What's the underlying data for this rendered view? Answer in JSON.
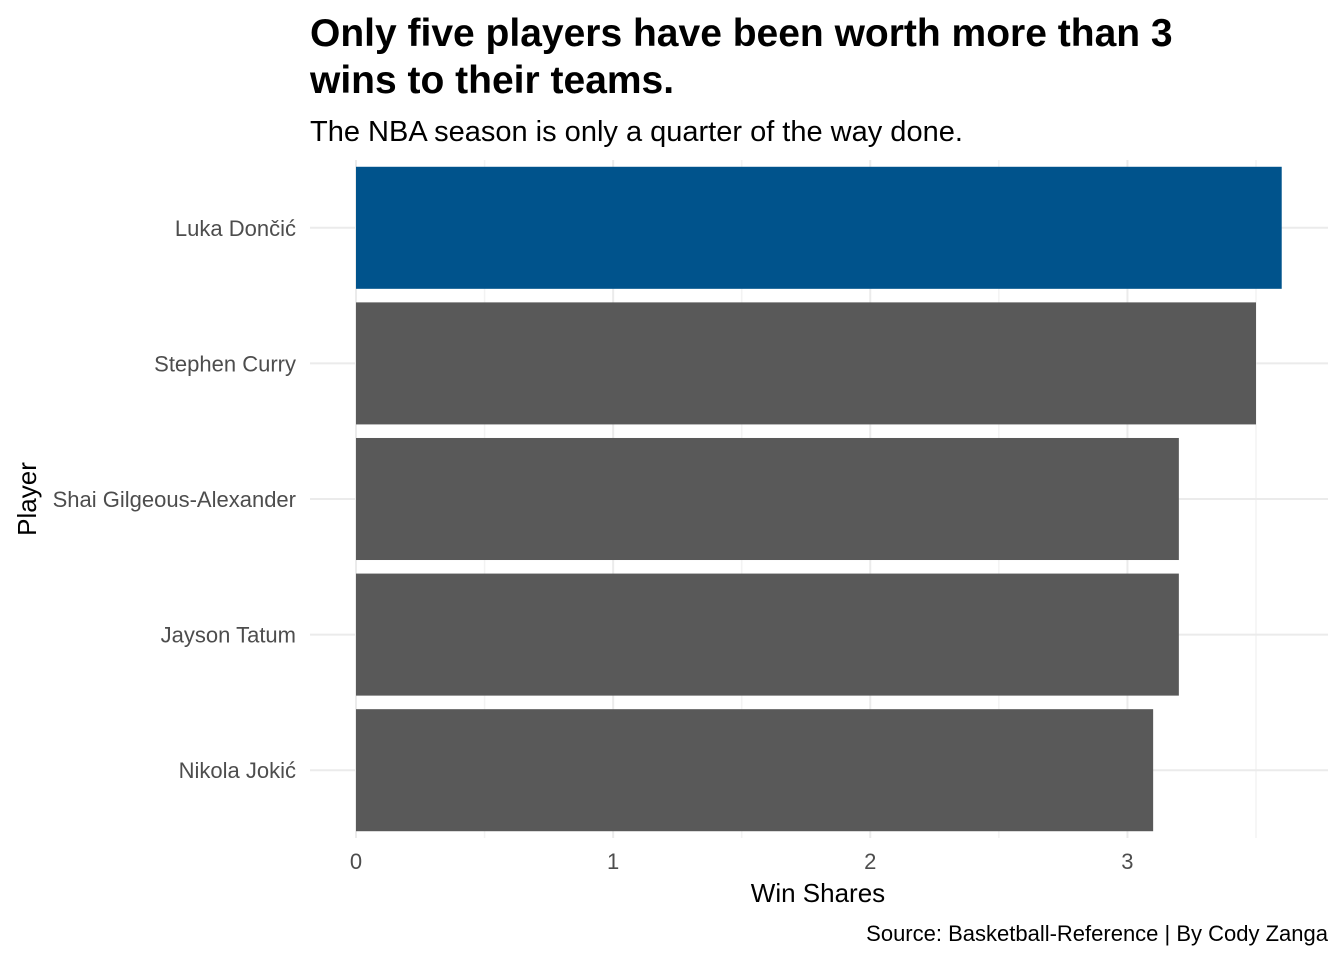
{
  "chart_data": {
    "type": "bar",
    "orientation": "horizontal",
    "title": "Only five players have been worth more than 3 wins to their teams.",
    "title_lines": [
      "Only five players have been worth more than 3",
      "wins to their teams."
    ],
    "subtitle": "The NBA season is only a quarter of the way done.",
    "caption": "Source: Basketball-Reference | By Cody Zanga",
    "xlabel": "Win Shares",
    "ylabel": "Player",
    "categories": [
      "Luka Dončić",
      "Stephen Curry",
      "Shai Gilgeous-Alexander",
      "Jayson Tatum",
      "Nikola Jokić"
    ],
    "values": [
      3.6,
      3.5,
      3.2,
      3.2,
      3.1
    ],
    "highlight": "Luka Dončić",
    "colors": {
      "highlight": "#00538c",
      "default": "#595959"
    },
    "x_ticks": [
      0,
      1,
      2,
      3
    ],
    "xlim": [
      0,
      3.78
    ],
    "grid": true,
    "legend": "none"
  }
}
